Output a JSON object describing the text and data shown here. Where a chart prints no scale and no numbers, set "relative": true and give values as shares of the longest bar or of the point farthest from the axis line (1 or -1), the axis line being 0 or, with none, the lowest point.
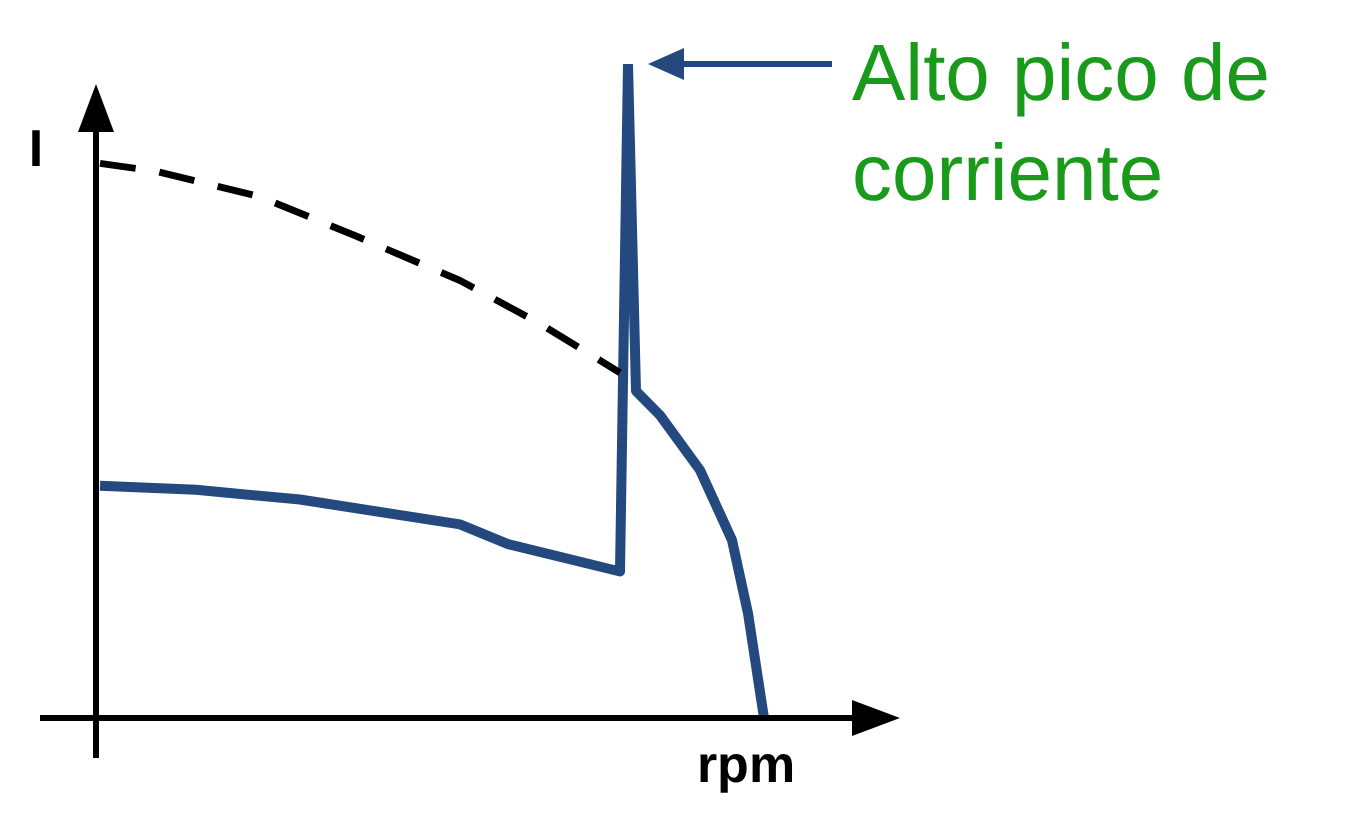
{
  "chart_data": {
    "type": "line",
    "relative": true,
    "xlabel": "rpm",
    "ylabel": "I",
    "grid": false,
    "legend": false,
    "marker": "none",
    "categories": [
      null,
      null,
      null,
      null,
      null,
      null,
      null,
      null,
      null,
      null,
      null,
      null,
      null,
      null,
      null,
      null,
      null,
      null,
      null,
      null,
      null,
      null,
      null,
      null,
      null,
      null,
      null,
      null,
      null,
      null,
      null,
      null,
      null,
      null,
      null,
      null,
      null,
      null,
      null,
      null,
      null,
      null,
      null,
      null,
      null,
      null,
      null,
      null,
      null,
      null,
      null,
      null,
      null,
      null,
      null,
      null,
      null,
      null,
      null,
      null,
      null,
      null,
      null,
      null,
      null,
      null,
      null,
      null,
      null,
      null,
      null,
      null,
      null,
      null,
      null,
      null,
      null,
      null,
      null,
      null,
      null,
      null,
      null,
      null,
      null,
      null,
      null,
      null,
      null,
      null,
      null,
      null,
      null,
      null,
      null,
      null,
      null,
      null
    ],
    "series": [
      {
        "color": "#000000",
        "line_style": "dashed",
        "values": [
          0.848,
          null,
          null,
          null,
          null,
          null,
          null,
          0.836,
          null,
          null,
          null,
          null,
          null,
          null,
          null,
          null,
          null,
          null,
          null,
          null,
          0.797,
          null,
          null,
          null,
          null,
          null,
          null,
          null,
          null,
          null,
          null,
          null,
          0.737,
          null,
          null,
          null,
          null,
          null,
          null,
          null,
          null,
          null,
          null,
          null,
          null,
          0.669,
          null,
          null,
          null,
          null,
          null,
          null,
          null,
          null,
          null,
          0.603,
          null,
          null,
          null,
          null,
          null,
          null,
          null,
          null,
          null,
          0.528,
          null,
          null,
          null,
          null,
          null,
          null,
          null,
          null,
          null,
          null,
          null,
          null,
          null,
          null,
          null,
          null,
          null,
          null,
          null,
          null,
          null,
          null,
          null,
          null,
          null,
          null,
          null,
          null,
          null,
          null,
          null,
          null
        ]
      },
      {
        "color": "#23497f",
        "line_style": "solid",
        "values": [
          0.355,
          null,
          null,
          null,
          null,
          null,
          null,
          null,
          null,
          null,
          null,
          null,
          0.349,
          null,
          null,
          null,
          null,
          null,
          null,
          null,
          null,
          null,
          null,
          null,
          null,
          0.334,
          null,
          null,
          null,
          null,
          null,
          null,
          null,
          null,
          null,
          null,
          null,
          null,
          null,
          null,
          null,
          null,
          null,
          null,
          null,
          0.296,
          null,
          null,
          null,
          null,
          null,
          0.266,
          null,
          null,
          null,
          null,
          null,
          null,
          null,
          null,
          null,
          null,
          null,
          null,
          null,
          0.224,
          1,
          0.5,
          null,
          null,
          0.463,
          null,
          null,
          null,
          null,
          0.379,
          null,
          null,
          null,
          0.272,
          null,
          0.16,
          null,
          0,
          null,
          null,
          null,
          null,
          null,
          null,
          null,
          null,
          null,
          null,
          null,
          null,
          null,
          null
        ]
      }
    ],
    "annotations": [
      "Alto pico de corriente"
    ]
  }
}
